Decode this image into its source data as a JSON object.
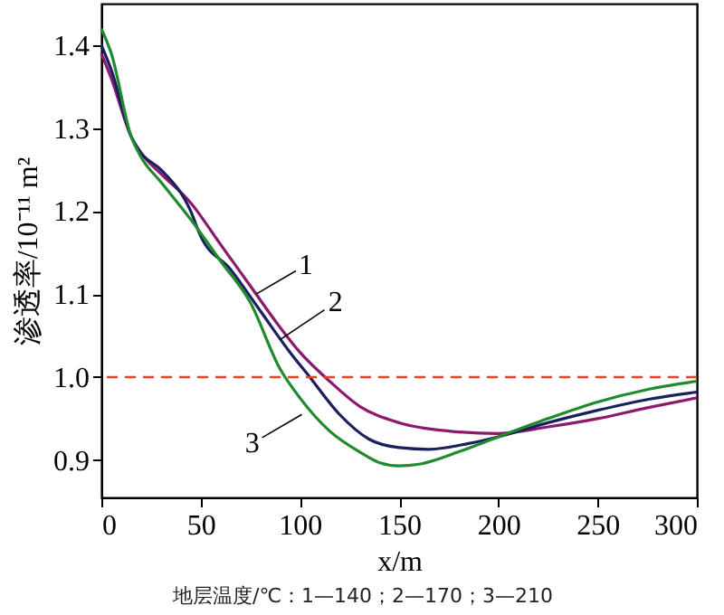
{
  "chart_data": {
    "type": "line",
    "xlabel": "x/m",
    "ylabel": "渗透率/10⁻¹¹ m²",
    "xlim": [
      0,
      300
    ],
    "xticks": [
      0,
      50,
      100,
      150,
      200,
      250,
      300
    ],
    "ylim": [
      0.855,
      1.45
    ],
    "yticks": [
      0.9,
      {
        "value": 1.0,
        "label": "1.0"
      },
      1.1,
      1.2,
      1.3,
      1.4
    ],
    "grid": false,
    "line_style": "solid",
    "marker": "none",
    "series": [
      {
        "color": "#8b1a6e",
        "x": [
          0,
          5,
          15,
          20,
          30,
          45,
          60,
          75,
          90,
          100,
          115,
          130,
          150,
          175,
          200,
          225,
          250,
          275,
          300
        ],
        "values": [
          1.39,
          1.36,
          1.29,
          1.27,
          1.245,
          1.21,
          1.16,
          1.11,
          1.06,
          1.03,
          0.995,
          0.965,
          0.945,
          0.935,
          0.932,
          0.94,
          0.95,
          0.963,
          0.975
        ]
      },
      {
        "color": "#1a1f5e",
        "x": [
          0,
          5,
          15,
          20,
          30,
          45,
          50,
          65,
          80,
          95,
          105,
          120,
          135,
          150,
          165,
          185,
          200,
          225,
          250,
          275,
          300
        ],
        "values": [
          1.4,
          1.37,
          1.29,
          1.27,
          1.25,
          1.2,
          1.17,
          1.13,
          1.08,
          1.03,
          1.0,
          0.955,
          0.925,
          0.915,
          0.913,
          0.92,
          0.928,
          0.945,
          0.96,
          0.973,
          0.982
        ]
      },
      {
        "color": "#1f8a2e",
        "x": [
          0,
          5,
          15,
          20,
          30,
          45,
          60,
          75,
          90,
          100,
          115,
          130,
          140,
          150,
          160,
          180,
          200,
          225,
          250,
          275,
          300
        ],
        "values": [
          1.42,
          1.39,
          1.29,
          1.265,
          1.235,
          1.19,
          1.14,
          1.09,
          1.01,
          0.975,
          0.935,
          0.91,
          0.897,
          0.893,
          0.895,
          0.91,
          0.928,
          0.95,
          0.97,
          0.985,
          0.995
        ]
      }
    ],
    "ref_lines": [
      {
        "axis": "y",
        "value": 1.0,
        "color": "#e8402a",
        "line_style": "dashed"
      }
    ],
    "annotations": [
      {
        "text": "1",
        "x": 78,
        "y": 1.1
      },
      {
        "text": "2",
        "x": 90,
        "y": 1.045
      },
      {
        "text": "3",
        "x": 101,
        "y": 0.955
      },
      "地层温度/℃：1—140；2—170；3—210"
    ]
  }
}
